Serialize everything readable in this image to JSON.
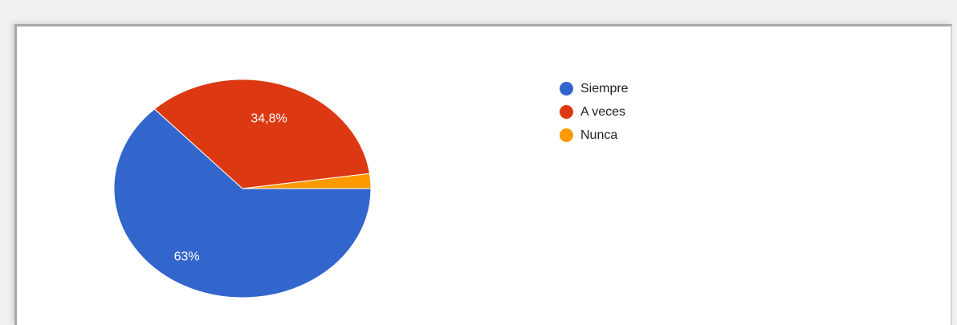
{
  "chart_data": {
    "type": "pie",
    "categories": [
      "Siempre",
      "A veces",
      "Nunca"
    ],
    "values": [
      63,
      34.8,
      2.2
    ],
    "data_labels": [
      "63%",
      "34,8%",
      ""
    ],
    "colors": [
      "#3366cc",
      "#dc3912",
      "#ff9900"
    ],
    "legend_position": "right"
  },
  "legend": {
    "items": [
      {
        "label": "Siempre",
        "color": "#3366cc"
      },
      {
        "label": "A veces",
        "color": "#dc3912"
      },
      {
        "label": "Nunca",
        "color": "#ff9900"
      }
    ]
  }
}
